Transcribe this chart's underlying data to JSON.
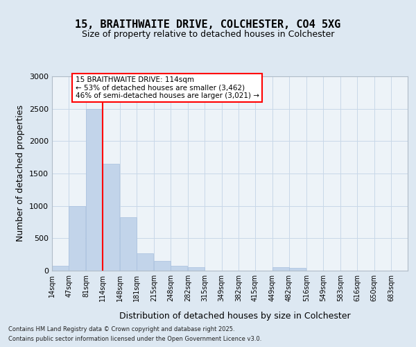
{
  "title": "15, BRAITHWAITE DRIVE, COLCHESTER, CO4 5XG",
  "subtitle": "Size of property relative to detached houses in Colchester",
  "xlabel": "Distribution of detached houses by size in Colchester",
  "ylabel": "Number of detached properties",
  "bins": [
    "14sqm",
    "47sqm",
    "81sqm",
    "114sqm",
    "148sqm",
    "181sqm",
    "215sqm",
    "248sqm",
    "282sqm",
    "315sqm",
    "349sqm",
    "382sqm",
    "415sqm",
    "449sqm",
    "482sqm",
    "516sqm",
    "549sqm",
    "583sqm",
    "616sqm",
    "650sqm",
    "683sqm"
  ],
  "bin_edges": [
    14,
    47,
    81,
    114,
    148,
    181,
    215,
    248,
    282,
    315,
    349,
    382,
    415,
    449,
    482,
    516,
    549,
    583,
    616,
    650,
    683
  ],
  "values": [
    75,
    1000,
    2500,
    1650,
    825,
    265,
    150,
    75,
    55,
    0,
    0,
    0,
    0,
    55,
    45,
    0,
    0,
    0,
    0,
    5,
    0
  ],
  "bar_color": "#c2d4ea",
  "bar_edge_color": "#a8c0de",
  "vline_x": 114,
  "vline_color": "red",
  "annotation_line1": "15 BRAITHWAITE DRIVE: 114sqm",
  "annotation_line2": "← 53% of detached houses are smaller (3,462)",
  "annotation_line3": "46% of semi-detached houses are larger (3,021) →",
  "ylim_max": 3000,
  "yticks": [
    0,
    500,
    1000,
    1500,
    2000,
    2500,
    3000
  ],
  "fig_bg": "#dde8f2",
  "ax_bg": "#edf3f8",
  "grid_color": "#c8d8e8",
  "footer_line1": "Contains HM Land Registry data © Crown copyright and database right 2025.",
  "footer_line2": "Contains public sector information licensed under the Open Government Licence v3.0."
}
